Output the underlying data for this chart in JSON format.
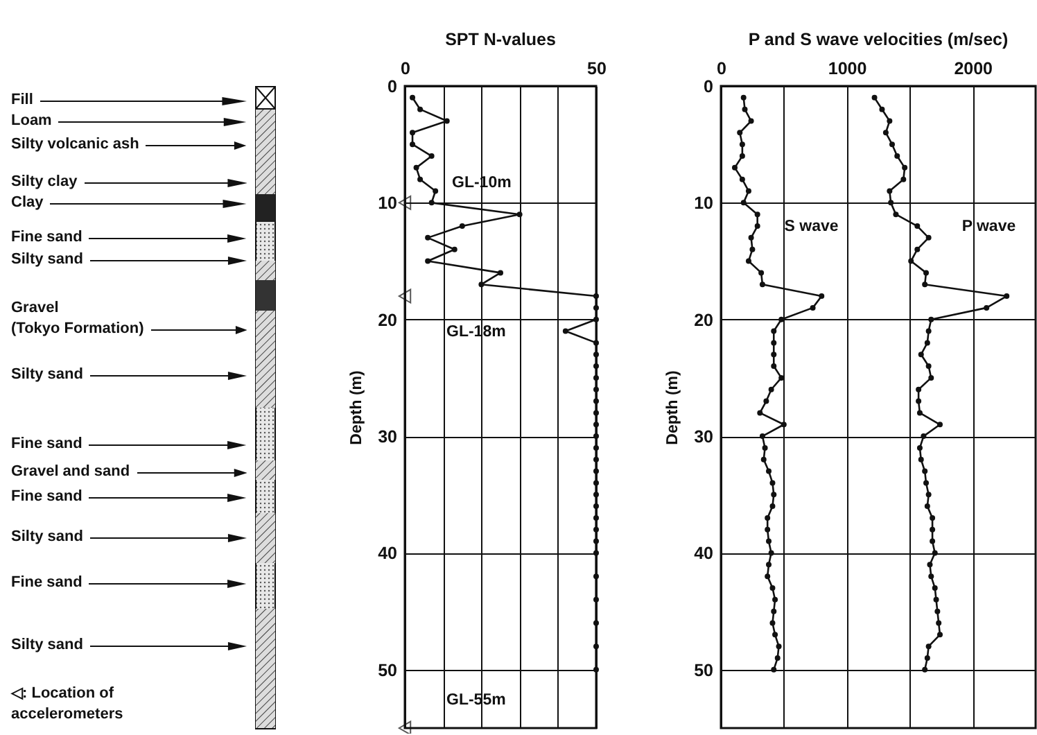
{
  "chart_data": [
    {
      "type": "other",
      "annotations": [
        "Fill",
        "Loam",
        "Silty volcanic ash",
        "Silty clay",
        "Clay",
        "Fine sand",
        "Silty sand",
        "Gravel\n(Tokyo Formation)",
        "Silty sand",
        "Fine sand",
        "Gravel and sand",
        "Fine sand",
        "Silty sand",
        "Fine sand",
        "Silty sand",
        "◁: Location of\naccelerometers"
      ]
    },
    {
      "type": "line",
      "title": "SPT N-values",
      "ylabel": "Depth (m)",
      "xlim": [
        0,
        50
      ],
      "xticks": [
        0,
        {
          "value": 10,
          "label": null
        },
        {
          "value": 20,
          "label": null
        },
        {
          "value": 30,
          "label": null
        },
        {
          "value": 40,
          "label": null
        },
        50
      ],
      "ylim": [
        55,
        0
      ],
      "yticks": [
        0,
        10,
        20,
        30,
        40,
        50
      ],
      "grid": true,
      "marker": "circle",
      "line_style": "solid",
      "series": [
        {
          "color": "#111111",
          "x": [
            2,
            4,
            11,
            2,
            2,
            7,
            3,
            4,
            8,
            7,
            30,
            15,
            6,
            13,
            6,
            25,
            20,
            50,
            50,
            50,
            42,
            50,
            50,
            50,
            50,
            50,
            50,
            50,
            50,
            50,
            50,
            50,
            50,
            50,
            50,
            50,
            50,
            50,
            50,
            50,
            50,
            50,
            50,
            50,
            50
          ],
          "values": [
            1,
            2,
            3,
            4,
            5,
            6,
            7,
            8,
            9,
            10,
            11,
            12,
            13,
            14,
            15,
            16,
            17,
            18,
            19,
            20,
            21,
            22,
            23,
            24,
            25,
            26,
            27,
            28,
            29,
            30,
            31,
            32,
            33,
            34,
            35,
            36,
            37,
            38,
            39,
            40,
            42,
            44,
            46,
            48,
            50
          ]
        },
        {
          "type": "scatter",
          "color": "#111111",
          "marker": "triangle",
          "x": [
            0,
            0,
            0
          ],
          "values": [
            10,
            18,
            55
          ]
        }
      ],
      "annotations": [
        "GL-10m",
        "GL-18m",
        "GL-55m"
      ]
    },
    {
      "type": "line",
      "title": "P and S wave velocities (m/sec)",
      "ylabel": "Depth (m)",
      "xlim": [
        0,
        2500
      ],
      "xticks": [
        0,
        {
          "value": 500,
          "label": null
        },
        1000,
        {
          "value": 1500,
          "label": null
        },
        2000
      ],
      "ylim": [
        55,
        0
      ],
      "yticks": [
        0,
        10,
        20,
        30,
        40,
        50
      ],
      "grid": true,
      "marker": "circle",
      "line_style": "solid",
      "series": [
        {
          "name": "S wave",
          "color": "#111111",
          "x": [
            180,
            190,
            240,
            150,
            170,
            170,
            110,
            170,
            220,
            180,
            290,
            290,
            240,
            250,
            220,
            320,
            330,
            800,
            730,
            480,
            420,
            420,
            420,
            420,
            480,
            400,
            360,
            310,
            500,
            330,
            350,
            340,
            380,
            410,
            420,
            410,
            370,
            370,
            380,
            400,
            380,
            370,
            410,
            430,
            420,
            410,
            430,
            460,
            450,
            420
          ],
          "values": [
            1,
            2,
            3,
            4,
            5,
            6,
            7,
            8,
            9,
            10,
            11,
            12,
            13,
            14,
            15,
            16,
            17,
            18,
            19,
            20,
            21,
            22,
            23,
            24,
            25,
            26,
            27,
            28,
            29,
            30,
            31,
            32,
            33,
            34,
            35,
            36,
            37,
            38,
            39,
            40,
            41,
            42,
            43,
            44,
            45,
            46,
            47,
            48,
            49,
            50
          ]
        },
        {
          "name": "P wave",
          "color": "#111111",
          "x": [
            1220,
            1280,
            1340,
            1310,
            1360,
            1400,
            1460,
            1450,
            1340,
            1350,
            1390,
            1560,
            1650,
            1560,
            1510,
            1630,
            1620,
            2270,
            2110,
            1670,
            1650,
            1640,
            1590,
            1650,
            1670,
            1570,
            1570,
            1580,
            1740,
            1610,
            1580,
            1590,
            1620,
            1630,
            1650,
            1640,
            1680,
            1680,
            1680,
            1700,
            1660,
            1670,
            1700,
            1710,
            1720,
            1730,
            1740,
            1650,
            1640,
            1620
          ],
          "values": [
            1,
            2,
            3,
            4,
            5,
            6,
            7,
            8,
            9,
            10,
            11,
            12,
            13,
            14,
            15,
            16,
            17,
            18,
            19,
            20,
            21,
            22,
            23,
            24,
            25,
            26,
            27,
            28,
            29,
            30,
            31,
            32,
            33,
            34,
            35,
            36,
            37,
            38,
            39,
            40,
            41,
            42,
            43,
            44,
            45,
            46,
            47,
            48,
            49,
            50
          ]
        }
      ]
    }
  ]
}
